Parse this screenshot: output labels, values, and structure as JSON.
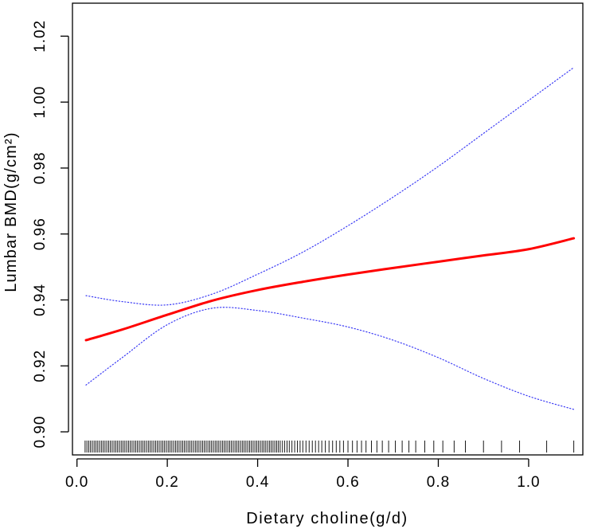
{
  "chart_data": {
    "type": "line",
    "xlabel": "Dietary choline(g/d)",
    "ylabel": "Lumbar BMD(g/cm²)",
    "xlim": [
      -0.01,
      1.12
    ],
    "ylim": [
      0.893,
      1.03
    ],
    "x_ticks": [
      0.0,
      0.2,
      0.4,
      0.6,
      0.8,
      1.0
    ],
    "x_tick_labels": [
      "0.0",
      "0.2",
      "0.4",
      "0.6",
      "0.8",
      "1.0"
    ],
    "y_ticks": [
      0.9,
      0.92,
      0.94,
      0.96,
      0.98,
      1.0,
      1.02
    ],
    "y_tick_labels": [
      "0.90",
      "0.92",
      "0.94",
      "0.96",
      "0.98",
      "1.00",
      "1.02"
    ],
    "grid": false,
    "series": [
      {
        "role": "fit",
        "color": "#ff0000",
        "style": "solid",
        "x": [
          0.02,
          0.1,
          0.2,
          0.3,
          0.4,
          0.5,
          0.6,
          0.7,
          0.8,
          0.9,
          1.0,
          1.1
        ],
        "y": [
          0.9278,
          0.931,
          0.9355,
          0.9398,
          0.943,
          0.9455,
          0.9477,
          0.9497,
          0.9516,
          0.9535,
          0.9554,
          0.9587
        ]
      },
      {
        "role": "upper_ci",
        "color": "#3a3af5",
        "style": "dotted",
        "x": [
          0.02,
          0.1,
          0.2,
          0.3,
          0.4,
          0.5,
          0.6,
          0.7,
          0.8,
          0.9,
          1.0,
          1.1
        ],
        "y": [
          0.9413,
          0.9395,
          0.9385,
          0.9418,
          0.9478,
          0.9545,
          0.9625,
          0.9712,
          0.9805,
          0.9905,
          1.0005,
          1.0105
        ]
      },
      {
        "role": "lower_ci",
        "color": "#3a3af5",
        "style": "dotted",
        "x": [
          0.02,
          0.1,
          0.2,
          0.3,
          0.4,
          0.5,
          0.6,
          0.7,
          0.8,
          0.9,
          1.0,
          1.1
        ],
        "y": [
          0.9142,
          0.9225,
          0.9325,
          0.9375,
          0.9368,
          0.9345,
          0.9318,
          0.9278,
          0.9225,
          0.9162,
          0.9108,
          0.9068
        ]
      }
    ],
    "rug": {
      "color": "#000000",
      "x": [
        0.018,
        0.022,
        0.026,
        0.03,
        0.034,
        0.038,
        0.042,
        0.046,
        0.05,
        0.054,
        0.058,
        0.062,
        0.066,
        0.07,
        0.074,
        0.078,
        0.082,
        0.086,
        0.09,
        0.094,
        0.098,
        0.102,
        0.106,
        0.11,
        0.114,
        0.118,
        0.122,
        0.126,
        0.13,
        0.134,
        0.138,
        0.142,
        0.146,
        0.15,
        0.154,
        0.158,
        0.162,
        0.166,
        0.17,
        0.174,
        0.178,
        0.182,
        0.186,
        0.19,
        0.194,
        0.198,
        0.202,
        0.206,
        0.21,
        0.214,
        0.218,
        0.222,
        0.226,
        0.23,
        0.234,
        0.238,
        0.242,
        0.246,
        0.25,
        0.254,
        0.258,
        0.262,
        0.266,
        0.27,
        0.274,
        0.278,
        0.282,
        0.286,
        0.29,
        0.294,
        0.298,
        0.302,
        0.306,
        0.31,
        0.314,
        0.318,
        0.322,
        0.326,
        0.33,
        0.334,
        0.338,
        0.342,
        0.346,
        0.35,
        0.354,
        0.358,
        0.362,
        0.366,
        0.37,
        0.374,
        0.378,
        0.382,
        0.386,
        0.39,
        0.394,
        0.398,
        0.402,
        0.406,
        0.41,
        0.414,
        0.418,
        0.422,
        0.426,
        0.43,
        0.434,
        0.438,
        0.442,
        0.446,
        0.45,
        0.455,
        0.46,
        0.465,
        0.47,
        0.476,
        0.482,
        0.488,
        0.494,
        0.5,
        0.507,
        0.514,
        0.521,
        0.528,
        0.535,
        0.542,
        0.55,
        0.558,
        0.566,
        0.574,
        0.582,
        0.59,
        0.6,
        0.61,
        0.62,
        0.63,
        0.64,
        0.652,
        0.664,
        0.676,
        0.69,
        0.705,
        0.72,
        0.735,
        0.75,
        0.77,
        0.79,
        0.81,
        0.835,
        0.86,
        0.9,
        0.94,
        0.98,
        1.04,
        1.1
      ]
    }
  }
}
